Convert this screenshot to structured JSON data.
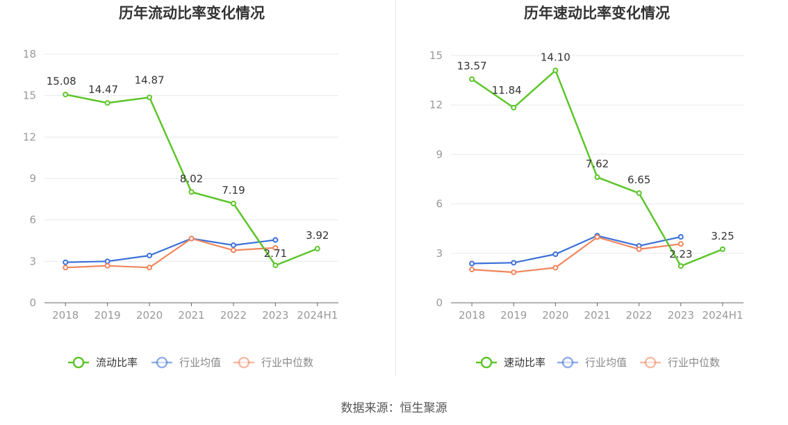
{
  "source": "数据来源：恒生聚源",
  "colors": {
    "main": "#5cc52a",
    "avg": "#3a6fd8",
    "median": "#f0855c",
    "grid": "#e6e8ee",
    "axis": "#666666",
    "tick_text": "#999999",
    "title": "#333333",
    "label": "#333333"
  },
  "chart_data": [
    {
      "type": "line",
      "title": "历年流动比率变化情况",
      "categories": [
        "2018",
        "2019",
        "2020",
        "2021",
        "2022",
        "2023",
        "2024H1"
      ],
      "ylim": [
        0,
        18
      ],
      "yticks": [
        0,
        3,
        6,
        9,
        12,
        15,
        18
      ],
      "grid": true,
      "legend": "bottom-center",
      "series": [
        {
          "name": "流动比率",
          "role": "main",
          "values": [
            15.08,
            14.47,
            14.87,
            8.02,
            7.19,
            2.71,
            3.92
          ],
          "labels": [
            "15.08",
            "14.47",
            "14.87",
            "8.02",
            "7.19",
            "2.71",
            "3.92"
          ]
        },
        {
          "name": "行业均值",
          "role": "avg",
          "values": [
            2.93,
            3.0,
            3.42,
            4.65,
            4.17,
            4.55,
            null
          ]
        },
        {
          "name": "行业中位数",
          "role": "median",
          "values": [
            2.55,
            2.68,
            2.55,
            4.65,
            3.8,
            3.98,
            null
          ]
        }
      ]
    },
    {
      "type": "line",
      "title": "历年速动比率变化情况",
      "categories": [
        "2018",
        "2019",
        "2020",
        "2021",
        "2022",
        "2023",
        "2024H1"
      ],
      "ylim": [
        0,
        15
      ],
      "yticks": [
        0,
        3,
        6,
        9,
        12,
        15
      ],
      "grid": true,
      "legend": "bottom-center",
      "series": [
        {
          "name": "速动比率",
          "role": "main",
          "values": [
            13.57,
            11.84,
            14.1,
            7.62,
            6.65,
            2.23,
            3.25
          ],
          "labels": [
            "13.57",
            "11.84",
            "14.10",
            "7.62",
            "6.65",
            "2.23",
            "3.25"
          ]
        },
        {
          "name": "行业均值",
          "role": "avg",
          "values": [
            2.38,
            2.43,
            2.95,
            4.07,
            3.45,
            4.0,
            null
          ]
        },
        {
          "name": "行业中位数",
          "role": "median",
          "values": [
            2.02,
            1.85,
            2.13,
            3.98,
            3.25,
            3.57,
            null
          ]
        }
      ]
    }
  ]
}
